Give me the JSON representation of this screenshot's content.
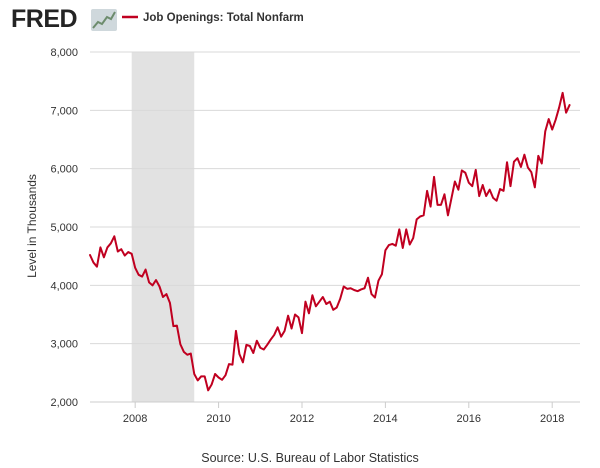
{
  "header": {
    "logo_text": "FRED",
    "logo_icon": "line-graph-icon"
  },
  "colors": {
    "series": "#c00020",
    "recession": "#e2e2e2",
    "grid": "#d9d9d9",
    "axis": "#cccccc"
  },
  "footer": {
    "source": "Source: U.S. Bureau of Labor Statistics"
  },
  "chart_data": {
    "type": "line",
    "title": "",
    "xlabel": "",
    "ylabel": "Level in Thousands",
    "x_start": "2006-12",
    "x_end": "2018-09",
    "xlim": [
      "2006-12",
      "2018-09"
    ],
    "ylim": [
      2000,
      8000
    ],
    "x_ticks": [
      "2008",
      "2010",
      "2012",
      "2014",
      "2016",
      "2018"
    ],
    "y_ticks": [
      "2,000",
      "3,000",
      "4,000",
      "5,000",
      "6,000",
      "7,000",
      "8,000"
    ],
    "grid": true,
    "legend_position": "top-left",
    "recession_shading": [
      {
        "start": "2007-12",
        "end": "2009-06"
      }
    ],
    "series": [
      {
        "name": "Job Openings: Total Nonfarm",
        "frequency": "monthly",
        "values": [
          4520,
          4390,
          4320,
          4650,
          4480,
          4650,
          4720,
          4840,
          4580,
          4620,
          4510,
          4570,
          4540,
          4300,
          4180,
          4150,
          4270,
          4050,
          4000,
          4090,
          3980,
          3800,
          3850,
          3700,
          3300,
          3310,
          2990,
          2860,
          2810,
          2830,
          2480,
          2370,
          2440,
          2440,
          2200,
          2300,
          2480,
          2420,
          2380,
          2460,
          2650,
          2640,
          3220,
          2820,
          2680,
          2980,
          2960,
          2840,
          3050,
          2930,
          2900,
          2980,
          3070,
          3150,
          3280,
          3120,
          3220,
          3480,
          3260,
          3500,
          3450,
          3180,
          3720,
          3520,
          3830,
          3640,
          3720,
          3800,
          3680,
          3720,
          3580,
          3620,
          3770,
          3980,
          3940,
          3950,
          3920,
          3900,
          3930,
          3950,
          4130,
          3850,
          3790,
          4080,
          4190,
          4600,
          4690,
          4710,
          4680,
          4960,
          4640,
          4960,
          4700,
          4810,
          5130,
          5180,
          5200,
          5620,
          5350,
          5860,
          5380,
          5380,
          5560,
          5200,
          5490,
          5780,
          5640,
          5970,
          5930,
          5760,
          5700,
          5980,
          5530,
          5720,
          5530,
          5640,
          5500,
          5450,
          5650,
          5620,
          6110,
          5700,
          6120,
          6180,
          6030,
          6240,
          6020,
          5940,
          5680,
          6220,
          6090,
          6640,
          6850,
          6670,
          6840,
          7050,
          7300,
          6960,
          7090
        ]
      }
    ]
  }
}
